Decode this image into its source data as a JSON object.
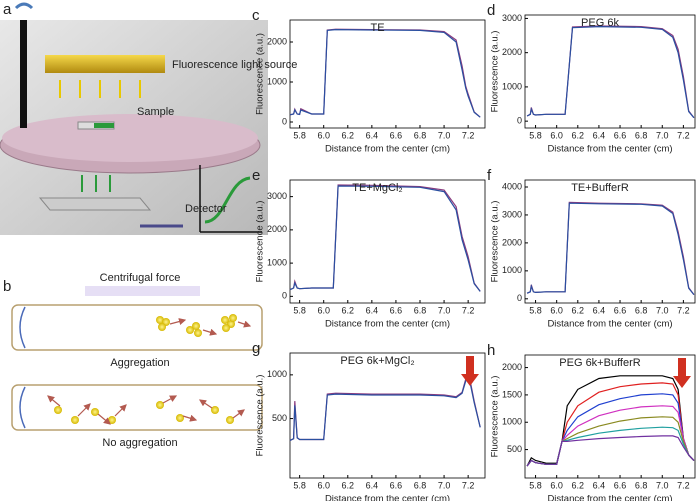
{
  "diagram": {
    "a": {
      "label": "a",
      "light": "Fluorescence light source",
      "sample": "Sample",
      "detector": "Detector"
    },
    "b": {
      "label": "b",
      "force": "Centrifugal force",
      "top": "Aggregation",
      "bottom": "No aggregation"
    }
  },
  "chart_data": [
    {
      "type": "line",
      "panel": "c",
      "title": "TE",
      "x_label": "Distance from the center (cm)",
      "y_label": "Fluorescence (a.u.)",
      "x": [
        5.72,
        5.75,
        5.76,
        5.78,
        5.8,
        5.81,
        5.9,
        6.0,
        6.03,
        6.1,
        6.4,
        6.8,
        7.0,
        7.1,
        7.15,
        7.18,
        7.2,
        7.25,
        7.3
      ],
      "series": [
        {
          "color": "#8a3b7e",
          "values": [
            180,
            200,
            320,
            200,
            190,
            330,
            200,
            200,
            2300,
            2320,
            2310,
            2300,
            2260,
            2050,
            1400,
            900,
            700,
            250,
            120
          ]
        },
        {
          "color": "#2a4fa0",
          "values": [
            180,
            200,
            300,
            200,
            190,
            300,
            200,
            200,
            2290,
            2310,
            2300,
            2290,
            2240,
            2000,
            1300,
            850,
            650,
            240,
            120
          ]
        }
      ],
      "xlim": [
        5.72,
        7.34
      ],
      "xticks": [
        5.8,
        {
          "value": 6,
          "label": "6.0"
        },
        6.2,
        6.4,
        6.6,
        6.8,
        {
          "value": 7,
          "label": "7.0"
        },
        7.2
      ],
      "ylim": [
        -150,
        2550
      ],
      "yticks": [
        0,
        1000,
        2000
      ]
    },
    {
      "type": "line",
      "panel": "d",
      "title": "PEG 6k",
      "x_label": "Distance from the center (cm)",
      "y_label": "Fluorescence (a.u.)",
      "x": [
        5.72,
        5.75,
        5.76,
        5.78,
        5.8,
        5.9,
        6.0,
        6.08,
        6.15,
        6.4,
        6.8,
        7.0,
        7.1,
        7.15,
        7.2,
        7.25,
        7.3
      ],
      "series": [
        {
          "color": "#8a3b7e",
          "values": [
            150,
            200,
            400,
            200,
            180,
            200,
            200,
            200,
            2750,
            2780,
            2760,
            2700,
            2500,
            2100,
            1300,
            300,
            100
          ]
        },
        {
          "color": "#2a4fa0",
          "values": [
            150,
            200,
            350,
            200,
            180,
            200,
            200,
            200,
            2730,
            2760,
            2740,
            2680,
            2450,
            2000,
            1200,
            280,
            100
          ]
        }
      ],
      "xlim": [
        5.7,
        7.31
      ],
      "xticks": [
        5.8,
        {
          "value": 6,
          "label": "6.0"
        },
        6.2,
        6.4,
        6.6,
        6.8,
        {
          "value": 7,
          "label": "7.0"
        },
        7.2
      ],
      "ylim": [
        -200,
        3100
      ],
      "yticks": [
        0,
        1000,
        2000,
        3000
      ]
    },
    {
      "type": "line",
      "panel": "e",
      "title": "TE+MgCl₂",
      "x_label": "Distance from the center (cm)",
      "y_label": "Fluorescence (a.u.)",
      "x": [
        5.72,
        5.75,
        5.76,
        5.78,
        5.8,
        5.9,
        6.0,
        6.08,
        6.12,
        6.4,
        6.8,
        7.0,
        7.1,
        7.15,
        7.2,
        7.25,
        7.3
      ],
      "series": [
        {
          "color": "#8a3b7e",
          "values": [
            200,
            250,
            450,
            250,
            230,
            250,
            250,
            250,
            3350,
            3340,
            3300,
            3200,
            2700,
            1800,
            1200,
            400,
            150
          ]
        },
        {
          "color": "#2a4fa0",
          "values": [
            200,
            250,
            400,
            250,
            230,
            250,
            250,
            250,
            3320,
            3310,
            3280,
            3150,
            2600,
            1700,
            1100,
            380,
            150
          ]
        }
      ],
      "xlim": [
        5.72,
        7.34
      ],
      "xticks": [
        5.8,
        {
          "value": 6,
          "label": "6.0"
        },
        6.2,
        6.4,
        6.6,
        6.8,
        {
          "value": 7,
          "label": "7.0"
        },
        7.2
      ],
      "ylim": [
        -200,
        3500
      ],
      "yticks": [
        0,
        1000,
        2000,
        3000
      ]
    },
    {
      "type": "line",
      "panel": "f",
      "title": "TE+BufferR",
      "x_label": "Distance from the center (cm)",
      "y_label": "Fluorescence (a.u.)",
      "x": [
        5.72,
        5.75,
        5.76,
        5.78,
        5.8,
        5.9,
        6.0,
        6.08,
        6.12,
        6.4,
        6.8,
        7.0,
        7.1,
        7.15,
        7.2,
        7.25,
        7.3
      ],
      "series": [
        {
          "color": "#8a3b7e",
          "values": [
            200,
            250,
            500,
            250,
            230,
            250,
            250,
            250,
            3450,
            3420,
            3400,
            3350,
            3100,
            2400,
            1500,
            400,
            150
          ]
        },
        {
          "color": "#2a4fa0",
          "values": [
            200,
            250,
            450,
            250,
            230,
            250,
            250,
            250,
            3420,
            3400,
            3380,
            3320,
            3050,
            2300,
            1400,
            380,
            150
          ]
        }
      ],
      "xlim": [
        5.7,
        7.31
      ],
      "xticks": [
        5.8,
        {
          "value": 6,
          "label": "6.0"
        },
        6.2,
        6.4,
        6.6,
        6.8,
        {
          "value": 7,
          "label": "7.0"
        },
        7.2
      ],
      "ylim": [
        -150,
        4250
      ],
      "yticks": [
        0,
        1000,
        2000,
        3000,
        4000
      ]
    },
    {
      "type": "line",
      "panel": "g",
      "title": "PEG 6k+MgCl₂",
      "x_label": "Distance from the center (cm)",
      "y_label": "Fluorescence (a.u.)",
      "x": [
        5.72,
        5.75,
        5.76,
        5.78,
        5.8,
        5.9,
        6.0,
        6.03,
        6.1,
        6.4,
        6.8,
        7.0,
        7.1,
        7.15,
        7.2,
        7.25,
        7.3
      ],
      "series": [
        {
          "color": "#8a3b7e",
          "values": [
            250,
            270,
            700,
            280,
            260,
            260,
            260,
            780,
            790,
            780,
            780,
            770,
            750,
            800,
            1050,
            700,
            400
          ]
        },
        {
          "color": "#2a4fa0",
          "values": [
            250,
            270,
            650,
            280,
            260,
            260,
            260,
            770,
            780,
            770,
            770,
            760,
            740,
            790,
            1020,
            680,
            400
          ]
        }
      ],
      "xlim": [
        5.72,
        7.34
      ],
      "xticks": [
        5.8,
        {
          "value": 6,
          "label": "6.0"
        },
        6.2,
        6.4,
        6.6,
        6.8,
        {
          "value": 7,
          "label": "7.0"
        },
        7.2
      ],
      "ylim": [
        -180,
        1250
      ],
      "yticks": [
        500,
        1000
      ]
    },
    {
      "type": "line",
      "panel": "h",
      "title": "PEG 6k+BufferR",
      "x_label": "Distance from the center (cm)",
      "y_label": "Fluorescence (a.u.)",
      "x": [
        5.72,
        5.76,
        5.8,
        5.9,
        6.0,
        6.05,
        6.1,
        6.2,
        6.4,
        6.6,
        6.8,
        7.0,
        7.1,
        7.15,
        7.2,
        7.25,
        7.3
      ],
      "series": [
        {
          "color": "#000000",
          "values": [
            200,
            350,
            300,
            250,
            250,
            650,
            1300,
            1600,
            1800,
            1850,
            1850,
            1850,
            1800,
            1600,
            700,
            400,
            300
          ]
        },
        {
          "color": "#e02020",
          "values": [
            200,
            300,
            260,
            230,
            230,
            650,
            1000,
            1300,
            1550,
            1650,
            1700,
            1720,
            1700,
            1500,
            700,
            400,
            300
          ]
        },
        {
          "color": "#2040d0",
          "values": [
            200,
            300,
            260,
            230,
            230,
            650,
            850,
            1100,
            1320,
            1430,
            1500,
            1520,
            1500,
            1350,
            700,
            400,
            300
          ]
        },
        {
          "color": "#d030c0",
          "values": [
            200,
            300,
            260,
            230,
            230,
            650,
            760,
            930,
            1120,
            1220,
            1280,
            1300,
            1290,
            1180,
            700,
            400,
            300
          ]
        },
        {
          "color": "#8a8a20",
          "values": [
            200,
            300,
            260,
            230,
            230,
            650,
            700,
            800,
            930,
            1020,
            1080,
            1100,
            1090,
            1000,
            650,
            400,
            300
          ]
        },
        {
          "color": "#20a0a0",
          "values": [
            200,
            300,
            260,
            230,
            230,
            650,
            670,
            720,
            800,
            850,
            890,
            910,
            900,
            850,
            600,
            400,
            300
          ]
        },
        {
          "color": "#7030a0",
          "values": [
            200,
            300,
            260,
            230,
            230,
            650,
            650,
            670,
            700,
            720,
            740,
            750,
            750,
            720,
            550,
            400,
            300
          ]
        }
      ],
      "xlim": [
        5.7,
        7.31
      ],
      "xticks": [
        5.8,
        {
          "value": 6,
          "label": "6.0"
        },
        6.2,
        6.4,
        6.6,
        6.8,
        {
          "value": 7,
          "label": "7.0"
        },
        7.2
      ],
      "ylim": [
        -20,
        2230
      ],
      "yticks": [
        500,
        1000,
        1500,
        2000
      ]
    }
  ]
}
